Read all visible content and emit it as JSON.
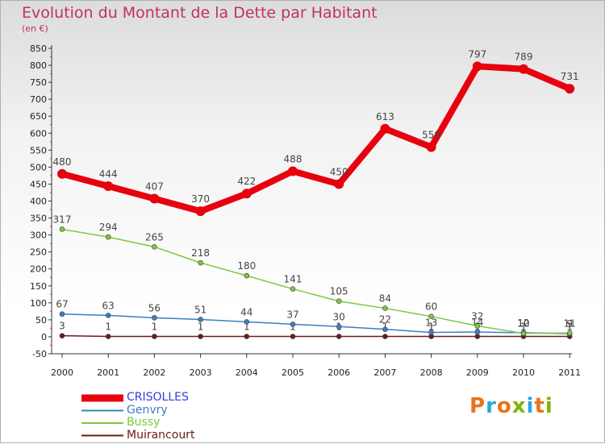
{
  "title": "Evolution du Montant de la Dette par Habitant",
  "subtitle": "(en €)",
  "logo": {
    "text": "Proxiti",
    "letters": [
      {
        "ch": "P",
        "color": "#e8731a"
      },
      {
        "ch": "r",
        "color": "#2aa6df"
      },
      {
        "ch": "o",
        "color": "#e8731a"
      },
      {
        "ch": "x",
        "color": "#7ab800"
      },
      {
        "ch": "i",
        "color": "#2aa6df"
      },
      {
        "ch": "t",
        "color": "#e8731a"
      },
      {
        "ch": "i",
        "color": "#7ab800"
      }
    ]
  },
  "chart_data": {
    "type": "line",
    "title": "Evolution du Montant de la Dette par Habitant",
    "subtitle": "(en €)",
    "x": [
      "2000",
      "2001",
      "2002",
      "2003",
      "2004",
      "2005",
      "2006",
      "2007",
      "2008",
      "2009",
      "2010",
      "2011"
    ],
    "ylim": [
      -50,
      850
    ],
    "yticks": [
      -50,
      0,
      50,
      100,
      150,
      200,
      250,
      300,
      350,
      400,
      450,
      500,
      550,
      600,
      650,
      700,
      750,
      800,
      850
    ],
    "grid": false,
    "legend_position": "bottom-left",
    "series": [
      {
        "name": "CRISOLLES",
        "color": "#e8000e",
        "values": [
          480,
          444,
          407,
          370,
          422,
          488,
          450,
          613,
          559,
          797,
          789,
          731
        ]
      },
      {
        "name": "Genvry",
        "color": "#3a7fc1",
        "values": [
          67,
          63,
          56,
          51,
          44,
          37,
          30,
          22,
          13,
          14,
          12,
          9
        ]
      },
      {
        "name": "Bussy",
        "color": "#7ac943",
        "values": [
          317,
          294,
          265,
          218,
          180,
          141,
          105,
          84,
          60,
          32,
          10,
          11
        ]
      },
      {
        "name": "Muirancourt",
        "color": "#6b1a1a",
        "values": [
          3,
          1,
          1,
          1,
          1,
          1,
          1,
          1,
          1,
          1,
          1,
          1
        ]
      }
    ]
  }
}
